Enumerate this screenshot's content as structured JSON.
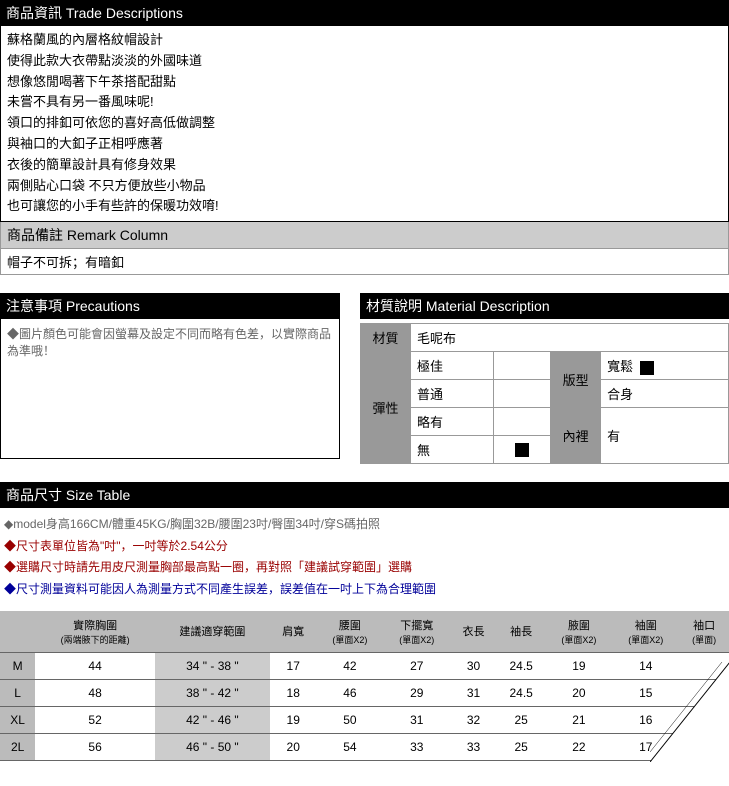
{
  "trade": {
    "header": "商品資訊 Trade Descriptions",
    "lines": [
      "蘇格蘭風的內層格紋帽設計",
      "使得此款大衣帶點淡淡的外國味道",
      "想像悠閒喝著下午茶搭配甜點",
      "未嘗不具有另一番風味呢!",
      "領口的排釦可依您的喜好高低做調整",
      "與袖口的大釦子正相呼應著",
      "衣後的簡單設計具有修身效果",
      "兩側貼心口袋 不只方便放些小物品",
      "也可讓您的小手有些許的保暖功效唷!"
    ]
  },
  "remark": {
    "header": "商品備註 Remark Column",
    "body": "帽子不可拆；有暗釦"
  },
  "precautions": {
    "header": "注意事項 Precautions",
    "body": "◆圖片顏色可能會因螢幕及設定不同而略有色差，以實際商品為準哦！"
  },
  "material": {
    "header": "材質說明 Material Description",
    "mat_label": "材質",
    "mat_value": "毛呢布",
    "elastic_label": "彈性",
    "elastic_opts": {
      "a": "極佳",
      "b": "普通",
      "c": "略有",
      "d": "無"
    },
    "fit_label": "版型",
    "fit_opts": {
      "a": "寬鬆",
      "b": "合身"
    },
    "lining_label": "內裡",
    "lining_value": "有"
  },
  "size": {
    "header": "商品尺寸 Size Table",
    "notes": {
      "n1": "◆model身高166CM/體重45KG/胸圍32B/腰圍23吋/臀圍34吋/穿S碼拍照",
      "n2": "◆尺寸表單位皆為\"吋\"，一吋等於2.54公分",
      "n3": "◆選購尺寸時請先用皮尺測量胸部最高點一圈，再對照「建議試穿範圍」選購",
      "n4": "◆尺寸測量資料可能因人為測量方式不同產生誤差，誤差值在一吋上下為合理範圍"
    },
    "columns": {
      "c0": "",
      "c1": "實際胸圍",
      "c1s": "(兩端腋下的距離)",
      "c2": "建議適穿範圍",
      "c3": "肩寬",
      "c4": "腰圍",
      "c4s": "(單面X2)",
      "c5": "下擺寬",
      "c5s": "(單面X2)",
      "c6": "衣長",
      "c7": "袖長",
      "c8": "腋圍",
      "c8s": "(單面X2)",
      "c9": "袖圍",
      "c9s": "(單面X2)",
      "c10": "袖口",
      "c10s": "(單面)"
    },
    "rows": [
      {
        "sz": "M",
        "bust": "44",
        "range": "34 \" - 38 \"",
        "shoulder": "17",
        "waist": "42",
        "hem": "27",
        "len": "30",
        "sleeve": "24.5",
        "arm": "19",
        "slv": "14",
        "cuff": ""
      },
      {
        "sz": "L",
        "bust": "48",
        "range": "38 \" - 42 \"",
        "shoulder": "18",
        "waist": "46",
        "hem": "29",
        "len": "31",
        "sleeve": "24.5",
        "arm": "20",
        "slv": "15",
        "cuff": ""
      },
      {
        "sz": "XL",
        "bust": "52",
        "range": "42 \" - 46 \"",
        "shoulder": "19",
        "waist": "50",
        "hem": "31",
        "len": "32",
        "sleeve": "25",
        "arm": "21",
        "slv": "16",
        "cuff": ""
      },
      {
        "sz": "2L",
        "bust": "56",
        "range": "46 \" - 50 \"",
        "shoulder": "20",
        "waist": "54",
        "hem": "33",
        "len": "33",
        "sleeve": "25",
        "arm": "22",
        "slv": "17",
        "cuff": ""
      }
    ]
  },
  "style": {
    "header_bg": "#000000",
    "header_fg": "#ffffff",
    "remark_bg": "#cccccc",
    "cell_lbl_bg": "#999999",
    "th_bg": "#bbbbbb",
    "range_bg": "#cccccc"
  }
}
